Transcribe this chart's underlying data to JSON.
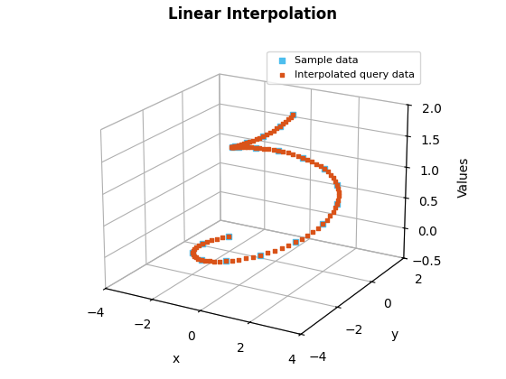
{
  "title": "Linear Interpolation",
  "xlabel": "x",
  "ylabel": "y",
  "zlabel": "Values",
  "sample_color": "#4DBEEE",
  "interp_color": "#D95319",
  "sample_label": "Sample data",
  "interp_label": "Interpolated query data",
  "xlim": [
    -4,
    4
  ],
  "ylim": [
    -4,
    2
  ],
  "zlim": [
    -0.5,
    2
  ],
  "xticks": [
    -4,
    -2,
    0,
    2,
    4
  ],
  "yticks": [
    -4,
    -2,
    0,
    2
  ],
  "zticks": [
    -0.5,
    0,
    0.5,
    1,
    1.5,
    2
  ],
  "n_sample": 21,
  "n_interp": 101,
  "helix_r_start": 3.0,
  "helix_r_end": 1.0,
  "helix_z_start": -0.5,
  "helix_z_end": 2.0,
  "helix_theta_start": 2.8,
  "helix_turns": 1.5,
  "marker_size_sample": 25,
  "marker_size_interp": 12,
  "elev": 20,
  "azim": -60
}
